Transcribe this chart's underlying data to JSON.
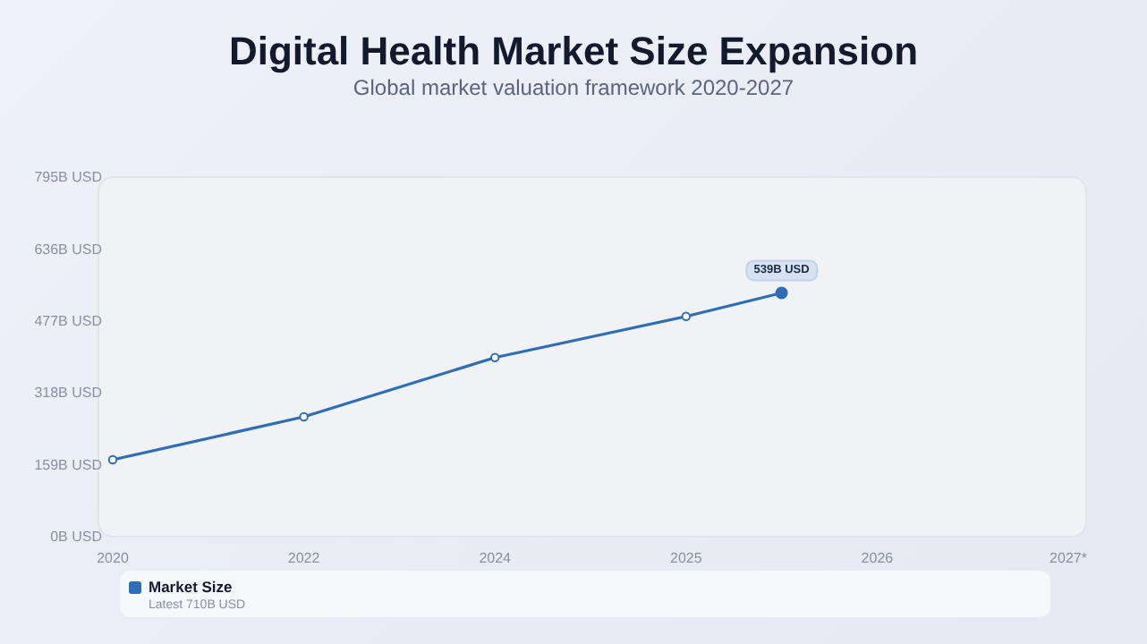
{
  "chart_data": {
    "type": "line",
    "title": "Digital Health Market Size Expansion",
    "subtitle": "Global market valuation framework 2020-2027",
    "categories": [
      "2020",
      null,
      "2022",
      null,
      "2024",
      null,
      "2025",
      null,
      "2026",
      null,
      "2027*"
    ],
    "series": [
      {
        "name": "Market Size",
        "color": "#2f6db5",
        "values": [
          170,
          null,
          265,
          null,
          396,
          null,
          487,
          539,
          null,
          null,
          null
        ],
        "value_labels": [
          null,
          null,
          null,
          null,
          null,
          null,
          null,
          "539B USD",
          null,
          null,
          null
        ]
      }
    ],
    "ylim": [
      0,
      795
    ],
    "yticks": [
      {
        "value": 0,
        "label": "0B USD"
      },
      {
        "value": 159,
        "label": "159B USD"
      },
      {
        "value": 318,
        "label": "318B USD"
      },
      {
        "value": 477,
        "label": "477B USD"
      },
      {
        "value": 636,
        "label": "636B USD"
      },
      {
        "value": 795,
        "label": "795B USD"
      }
    ],
    "annotations": [
      "Latest 710B USD"
    ],
    "legend": "bottom",
    "marker": "circle",
    "grid": false
  }
}
